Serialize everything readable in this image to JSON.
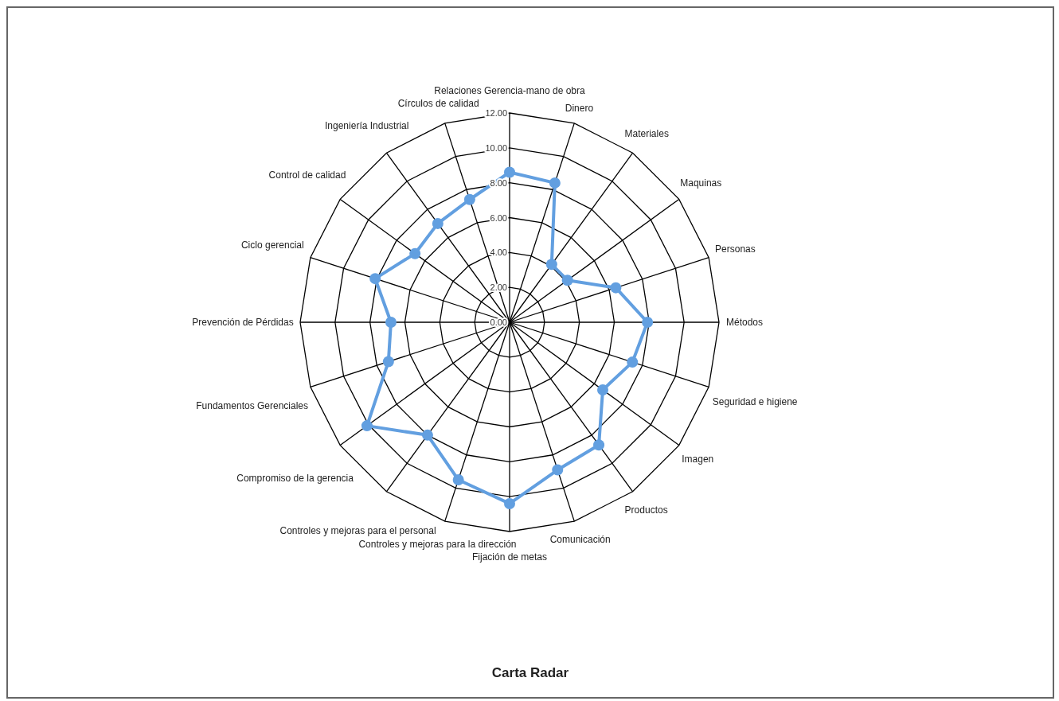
{
  "chart_data": {
    "type": "radar",
    "title": "Carta Radar",
    "categories": [
      "Relaciones  Gerencia-mano de obra",
      "Dinero",
      "Materiales",
      "Maquinas",
      "Personas",
      "Métodos",
      "Seguridad e higiene",
      "Imagen",
      "Productos",
      "Comunicación",
      "Fijación de metas",
      "Controles y mejoras para la dirección",
      "Controles y mejoras para el personal",
      "Compromiso de la gerencia",
      "Fundamentos Gerenciales",
      "Prevención de Pérdidas",
      "Ciclo  gerencial",
      "Control de calidad",
      "Ingeniería Industrial",
      "Círculos de calidad"
    ],
    "series": [
      {
        "color": "#629fe0",
        "values": [
          8.6,
          8.4,
          4.1,
          4.1,
          6.4,
          7.9,
          7.4,
          6.6,
          8.7,
          8.9,
          10.4,
          9.5,
          8.0,
          10.1,
          7.3,
          6.8,
          8.1,
          6.7,
          7.0,
          7.4
        ]
      }
    ],
    "ylim": [
      0,
      12
    ],
    "yticks": [
      {
        "value": 0,
        "label": "0.00"
      },
      {
        "value": 2,
        "label": "2.00"
      },
      {
        "value": 4,
        "label": "4.00"
      },
      {
        "value": 6,
        "label": "6.00"
      },
      {
        "value": 8,
        "label": "8.00"
      },
      {
        "value": 10,
        "label": "10.00"
      },
      {
        "value": 12,
        "label": "12.00"
      }
    ],
    "grid": true,
    "marker": "circle",
    "legend": false
  }
}
